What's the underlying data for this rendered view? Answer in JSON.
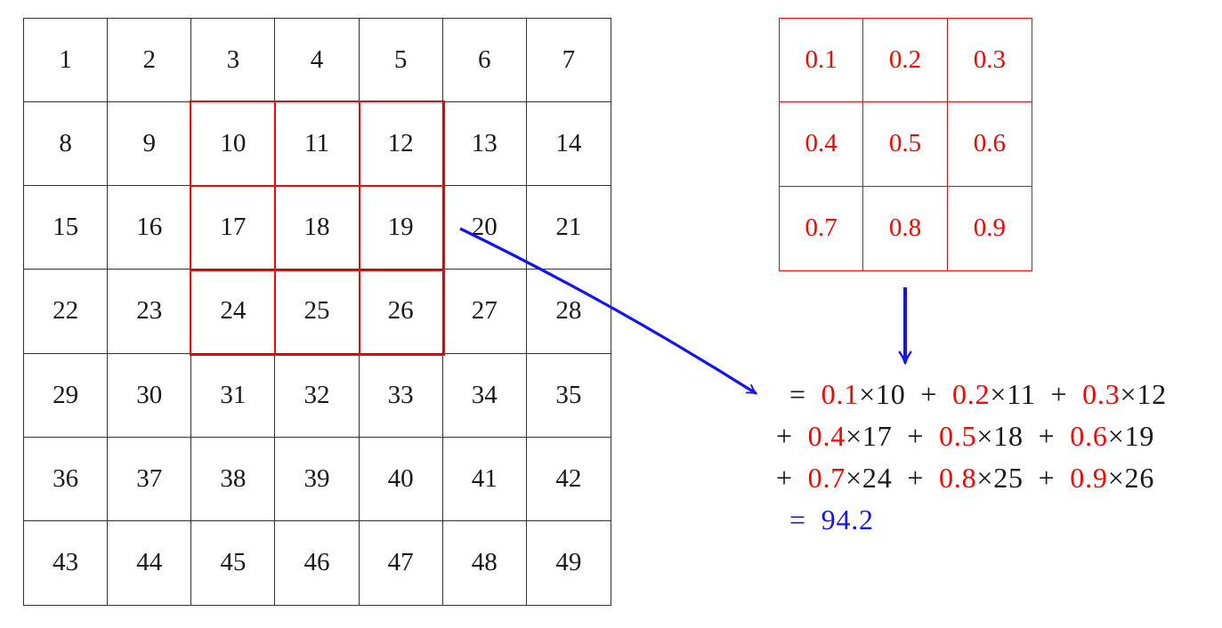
{
  "colors": {
    "red": "#ff0000",
    "blue": "#1414f0",
    "ink": "#181818",
    "grid_line": "#333333"
  },
  "input_grid": {
    "rows": 7,
    "cols": 7,
    "values": [
      [
        1,
        2,
        3,
        4,
        5,
        6,
        7
      ],
      [
        8,
        9,
        10,
        11,
        12,
        13,
        14
      ],
      [
        15,
        16,
        17,
        18,
        19,
        20,
        21
      ],
      [
        22,
        23,
        24,
        25,
        26,
        27,
        28
      ],
      [
        29,
        30,
        31,
        32,
        33,
        34,
        35
      ],
      [
        36,
        37,
        38,
        39,
        40,
        41,
        42
      ],
      [
        43,
        44,
        45,
        46,
        47,
        48,
        49
      ]
    ],
    "highlight_window": {
      "row_start": 2,
      "row_end": 4,
      "col_start": 3,
      "col_end": 5,
      "cell_values": [
        [
          10,
          11,
          12
        ],
        [
          17,
          18,
          19
        ],
        [
          24,
          25,
          26
        ]
      ]
    }
  },
  "kernel": {
    "rows": 3,
    "cols": 3,
    "values": [
      [
        "0.1",
        "0.2",
        "0.3"
      ],
      [
        "0.4",
        "0.5",
        "0.6"
      ],
      [
        "0.7",
        "0.8",
        "0.9"
      ]
    ]
  },
  "equation": {
    "result": "94.2",
    "lines": [
      {
        "indent": true,
        "segments": [
          {
            "t": "= ",
            "c": "black"
          },
          {
            "t": "0.1",
            "c": "red"
          },
          {
            "t": "×10",
            "c": "black"
          },
          {
            "t": " + ",
            "c": "black"
          },
          {
            "t": "0.2",
            "c": "red"
          },
          {
            "t": "×11",
            "c": "black"
          },
          {
            "t": " + ",
            "c": "black"
          },
          {
            "t": "0.3",
            "c": "red"
          },
          {
            "t": "×12",
            "c": "black"
          }
        ]
      },
      {
        "indent": false,
        "segments": [
          {
            "t": "+ ",
            "c": "black"
          },
          {
            "t": "0.4",
            "c": "red"
          },
          {
            "t": "×17",
            "c": "black"
          },
          {
            "t": " + ",
            "c": "black"
          },
          {
            "t": "0.5",
            "c": "red"
          },
          {
            "t": "×18",
            "c": "black"
          },
          {
            "t": " + ",
            "c": "black"
          },
          {
            "t": "0.6",
            "c": "red"
          },
          {
            "t": "×19",
            "c": "black"
          }
        ]
      },
      {
        "indent": false,
        "segments": [
          {
            "t": "+ ",
            "c": "black"
          },
          {
            "t": "0.7",
            "c": "red"
          },
          {
            "t": "×24",
            "c": "black"
          },
          {
            "t": " + ",
            "c": "black"
          },
          {
            "t": "0.8",
            "c": "red"
          },
          {
            "t": "×25",
            "c": "black"
          },
          {
            "t": " + ",
            "c": "black"
          },
          {
            "t": "0.9",
            "c": "red"
          },
          {
            "t": "×26",
            "c": "black"
          }
        ]
      },
      {
        "indent": true,
        "segments": [
          {
            "t": "= 94.2",
            "c": "blue"
          }
        ]
      }
    ]
  }
}
